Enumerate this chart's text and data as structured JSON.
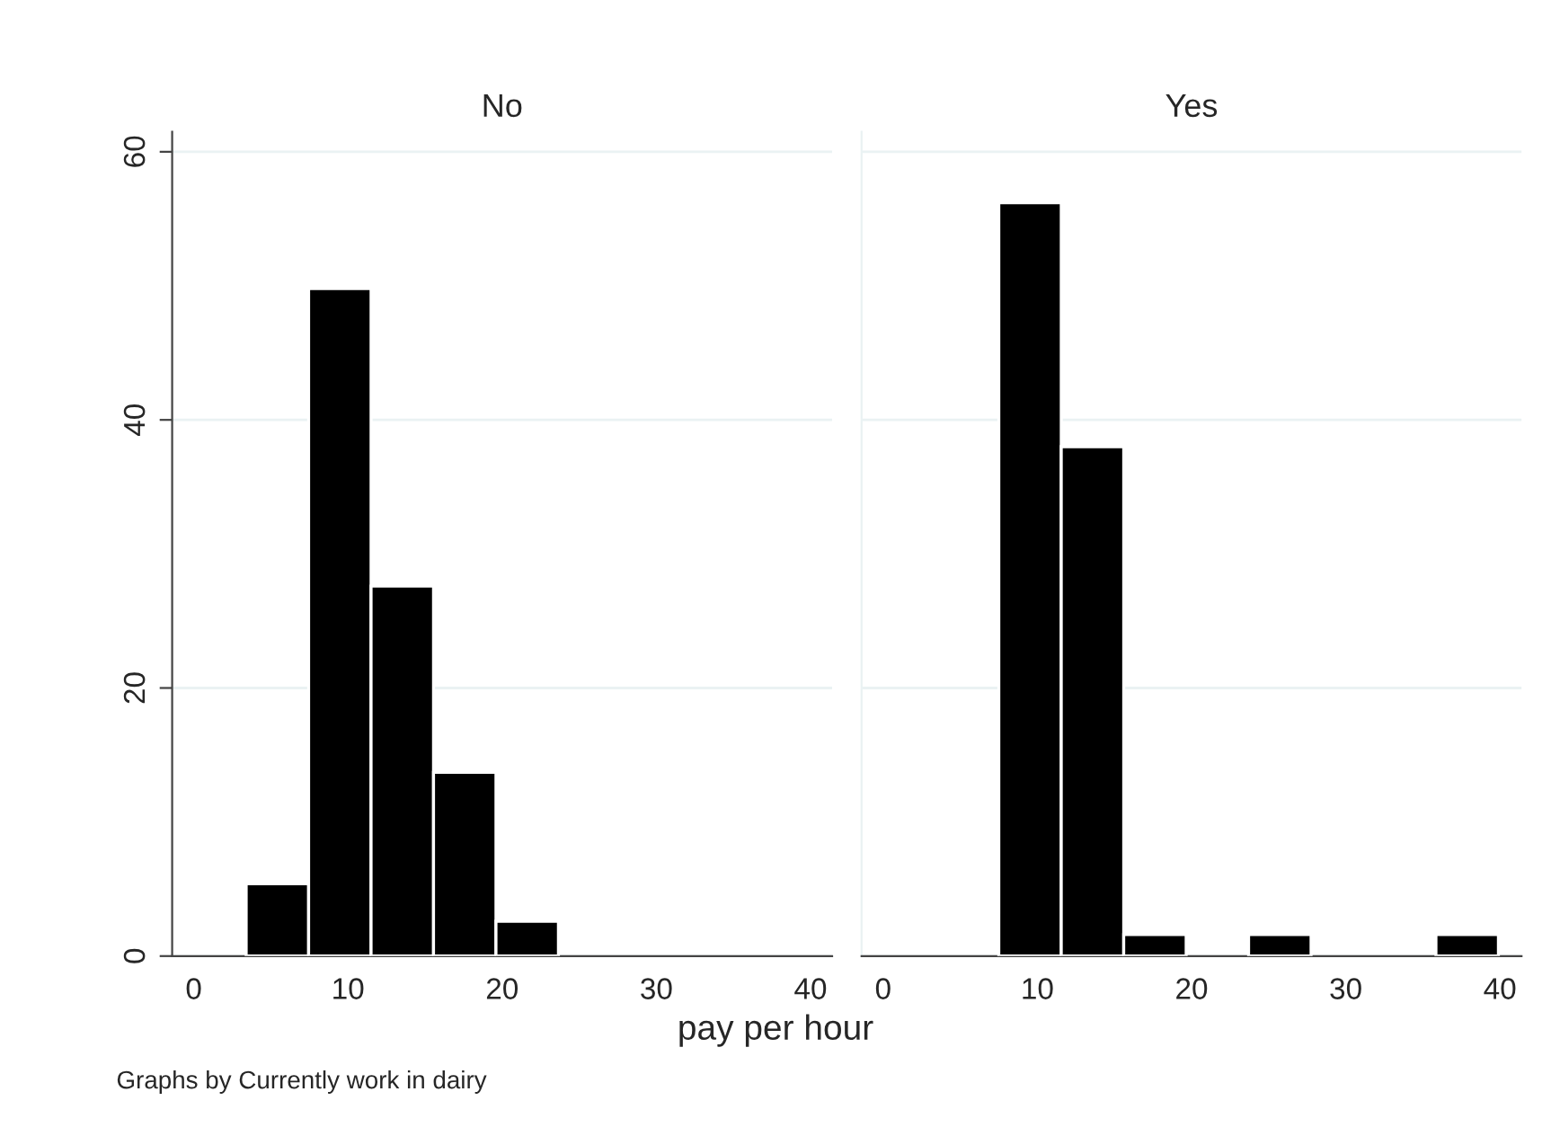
{
  "chart_data": [
    {
      "type": "histogram",
      "title": "No",
      "xlabel": "pay per hour",
      "bins": [
        3.4,
        7.45,
        11.5,
        15.55,
        19.6,
        23.65
      ],
      "values": [
        5.4,
        49.8,
        27.6,
        13.7,
        2.6
      ],
      "color": "#000000",
      "xlim": [
        -1.4,
        41.4
      ],
      "xticks": [
        0,
        10,
        20,
        30,
        40
      ],
      "ylim": [
        0,
        61.5
      ],
      "yticks": [
        0,
        20,
        40,
        60
      ],
      "grid": "y",
      "annotations": [
        "Graphs by Currently work in dairy"
      ]
    },
    {
      "type": "histogram",
      "title": "Yes",
      "bins": [
        7.5,
        11.55,
        15.6,
        19.65,
        23.7,
        27.75,
        31.8,
        35.85,
        39.9
      ],
      "values": [
        56.2,
        38.0,
        1.6,
        0,
        1.6,
        0,
        0,
        1.6
      ],
      "color": "#000000",
      "xlim": [
        -1.4,
        41.4
      ],
      "xticks": [
        0,
        10,
        20,
        30,
        40
      ],
      "ylim": [
        0,
        61.5
      ],
      "yticks": [
        0,
        20,
        40,
        60
      ],
      "grid": "y",
      "tick_labels": "x"
    }
  ]
}
